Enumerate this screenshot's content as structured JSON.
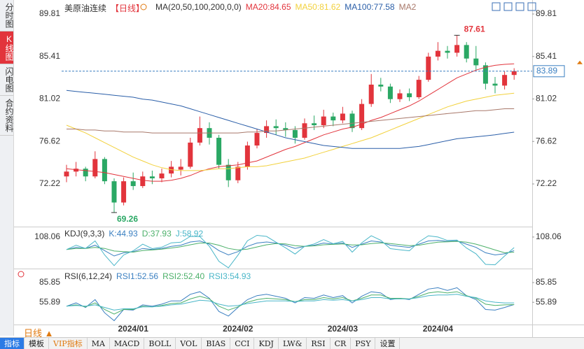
{
  "sidebar": {
    "tabs": [
      "分时图",
      "K线图",
      "闪电图",
      "合约资料"
    ]
  },
  "period_selector": "日线",
  "toolbar": {
    "items": [
      "指标",
      "模板",
      "VIP指标",
      "MA",
      "MACD",
      "BOLL",
      "VOL",
      "BIAS",
      "CCI",
      "KDJ",
      "LW&",
      "RSI",
      "CR",
      "PSY",
      "设置"
    ]
  },
  "chart_data": [
    {
      "type": "candlestick",
      "title": "美原油连续",
      "period": "【日线】",
      "indicator": "MA(20,50,100,200,0,0)",
      "categories": [
        null,
        null,
        null,
        null,
        null,
        null,
        null,
        "2024/01",
        null,
        null,
        null,
        null,
        null,
        null,
        null,
        null,
        null,
        null,
        "2024/02",
        null,
        null,
        null,
        null,
        null,
        null,
        null,
        null,
        null,
        null,
        "2024/03",
        null,
        null,
        null,
        null,
        null,
        null,
        null,
        null,
        null,
        "2024/04",
        null,
        null,
        null,
        null,
        null,
        null,
        null,
        null
      ],
      "up_color": "#e2343c",
      "down_color": "#2aa864",
      "ohlc": [
        [
          73.0,
          74.2,
          72.4,
          73.5
        ],
        [
          73.5,
          74.5,
          73.0,
          73.8
        ],
        [
          73.8,
          74.0,
          72.5,
          73.0
        ],
        [
          73.0,
          75.6,
          72.8,
          74.8
        ],
        [
          74.8,
          75.0,
          72.2,
          72.5
        ],
        [
          72.5,
          72.8,
          69.26,
          70.3
        ],
        [
          70.3,
          72.9,
          70.0,
          72.5
        ],
        [
          72.5,
          73.4,
          71.6,
          72.0
        ],
        [
          72.0,
          73.5,
          71.8,
          73.0
        ],
        [
          73.0,
          73.6,
          72.2,
          72.8
        ],
        [
          72.8,
          73.8,
          72.4,
          73.3
        ],
        [
          73.3,
          74.6,
          72.9,
          74.0
        ],
        [
          73.7,
          74.8,
          73.1,
          74.0
        ],
        [
          74.0,
          77.0,
          73.8,
          76.5
        ],
        [
          76.5,
          79.2,
          76.2,
          78.0
        ],
        [
          78.0,
          78.6,
          76.3,
          77.0
        ],
        [
          77.0,
          77.3,
          73.8,
          74.2
        ],
        [
          74.2,
          74.8,
          71.9,
          72.6
        ],
        [
          72.6,
          74.5,
          72.3,
          74.0
        ],
        [
          74.0,
          76.6,
          73.7,
          76.2
        ],
        [
          76.2,
          77.9,
          75.9,
          77.5
        ],
        [
          77.5,
          78.8,
          77.0,
          78.2
        ],
        [
          78.2,
          78.9,
          77.3,
          78.0
        ],
        [
          78.0,
          78.6,
          77.1,
          77.8
        ],
        [
          77.8,
          78.2,
          76.4,
          77.0
        ],
        [
          77.0,
          79.0,
          76.8,
          78.5
        ],
        [
          78.5,
          79.3,
          77.8,
          78.3
        ],
        [
          78.3,
          79.9,
          78.0,
          79.2
        ],
        [
          79.2,
          79.6,
          78.2,
          78.8
        ],
        [
          78.8,
          80.2,
          78.5,
          79.5
        ],
        [
          79.5,
          79.8,
          77.6,
          78.0
        ],
        [
          78.0,
          81.0,
          77.8,
          80.5
        ],
        [
          80.5,
          83.6,
          80.2,
          82.5
        ],
        [
          82.5,
          83.2,
          81.8,
          82.3
        ],
        [
          82.3,
          82.6,
          80.6,
          81.0
        ],
        [
          81.0,
          82.0,
          80.7,
          81.6
        ],
        [
          81.6,
          82.1,
          80.8,
          81.2
        ],
        [
          81.2,
          83.4,
          81.0,
          83.0
        ],
        [
          83.0,
          85.8,
          82.8,
          85.4
        ],
        [
          85.4,
          86.9,
          85.0,
          86.0
        ],
        [
          86.0,
          86.5,
          85.2,
          85.8
        ],
        [
          85.8,
          87.61,
          85.4,
          86.6
        ],
        [
          86.6,
          86.9,
          84.8,
          85.2
        ],
        [
          85.2,
          86.5,
          84.0,
          84.5
        ],
        [
          84.5,
          84.8,
          82.0,
          82.6
        ],
        [
          82.6,
          83.3,
          81.6,
          82.4
        ],
        [
          82.4,
          83.9,
          82.0,
          83.5
        ],
        [
          83.5,
          84.2,
          83.0,
          83.89
        ]
      ],
      "series": [
        {
          "name": "MA20:84.65",
          "color": "#e2343c",
          "values": [
            73.8,
            73.7,
            73.6,
            73.5,
            73.4,
            73.2,
            73.0,
            72.8,
            72.6,
            72.5,
            72.5,
            72.6,
            72.8,
            73.1,
            73.5,
            73.8,
            74.0,
            74.1,
            74.2,
            74.4,
            74.6,
            75.0,
            75.4,
            75.8,
            76.1,
            76.5,
            76.9,
            77.3,
            77.6,
            77.9,
            78.1,
            78.4,
            78.8,
            79.1,
            79.5,
            79.9,
            80.3,
            80.8,
            81.4,
            82.0,
            82.6,
            83.2,
            83.6,
            84.0,
            84.3,
            84.5,
            84.6,
            84.65
          ]
        },
        {
          "name": "MA50:81.62",
          "color": "#f2d13c",
          "values": [
            78.3,
            77.9,
            77.5,
            77.0,
            76.5,
            76.0,
            75.5,
            75.0,
            74.6,
            74.2,
            73.9,
            73.7,
            73.6,
            73.6,
            73.6,
            73.7,
            73.8,
            73.8,
            73.9,
            74.0,
            74.0,
            74.1,
            74.3,
            74.5,
            74.7,
            74.9,
            75.2,
            75.5,
            75.8,
            76.1,
            76.4,
            76.7,
            77.0,
            77.4,
            77.8,
            78.2,
            78.6,
            79.0,
            79.4,
            79.8,
            80.2,
            80.5,
            80.8,
            81.0,
            81.2,
            81.4,
            81.5,
            81.62
          ]
        },
        {
          "name": "MA100:77.58",
          "color": "#2a5ea8",
          "values": [
            81.9,
            81.8,
            81.7,
            81.6,
            81.5,
            81.4,
            81.3,
            81.2,
            81.0,
            80.9,
            80.7,
            80.5,
            80.3,
            80.0,
            79.7,
            79.4,
            79.1,
            78.8,
            78.5,
            78.2,
            77.9,
            77.6,
            77.3,
            77.0,
            76.8,
            76.6,
            76.4,
            76.2,
            76.1,
            76.0,
            75.9,
            75.9,
            75.9,
            75.9,
            75.9,
            75.9,
            76.0,
            76.1,
            76.3,
            76.5,
            76.7,
            76.9,
            77.0,
            77.1,
            77.2,
            77.3,
            77.45,
            77.58
          ]
        },
        {
          "name": "MA2",
          "color": "#a8786a",
          "values": [
            77.9,
            77.9,
            77.8,
            77.8,
            77.7,
            77.7,
            77.6,
            77.6,
            77.6,
            77.5,
            77.5,
            77.5,
            77.5,
            77.5,
            77.5,
            77.5,
            77.5,
            77.5,
            77.5,
            77.6,
            77.6,
            77.7,
            77.7,
            77.8,
            77.9,
            78.0,
            78.1,
            78.2,
            78.3,
            78.4,
            78.5,
            78.6,
            78.7,
            78.8,
            78.9,
            79.0,
            79.1,
            79.2,
            79.3,
            79.4,
            79.5,
            79.6,
            79.7,
            79.8,
            79.8,
            79.9,
            80.0,
            80.0
          ]
        }
      ],
      "ylim": [
        67.95,
        90.68
      ],
      "yticks": [
        72.22,
        76.62,
        81.02,
        85.41,
        89.81
      ]
    },
    {
      "type": "line",
      "title": "KDJ(9,3,3)",
      "series": [
        {
          "name": "K:44.93",
          "color": "#3a7fc1",
          "values": [
            50,
            60,
            55,
            70,
            45,
            20,
            35,
            40,
            55,
            50,
            55,
            65,
            70,
            85,
            90,
            75,
            45,
            25,
            40,
            65,
            80,
            85,
            80,
            70,
            55,
            65,
            70,
            80,
            75,
            80,
            60,
            75,
            90,
            85,
            70,
            65,
            60,
            75,
            90,
            92,
            88,
            90,
            75,
            60,
            35,
            25,
            30,
            44.93
          ]
        },
        {
          "name": "D:37.93",
          "color": "#4cb06a",
          "values": [
            50,
            55,
            55,
            60,
            55,
            43,
            40,
            38,
            45,
            48,
            52,
            57,
            63,
            72,
            80,
            80,
            70,
            55,
            48,
            52,
            62,
            72,
            78,
            76,
            68,
            65,
            67,
            72,
            74,
            76,
            71,
            72,
            78,
            81,
            78,
            73,
            68,
            70,
            78,
            84,
            86,
            88,
            84,
            75,
            62,
            48,
            35,
            37.93
          ]
        },
        {
          "name": "J:58.92",
          "color": "#49b6c8",
          "values": [
            50,
            70,
            55,
            90,
            25,
            -25,
            25,
            44,
            75,
            54,
            61,
            81,
            84,
            111,
            110,
            65,
            -5,
            -35,
            24,
            91,
            116,
            111,
            84,
            58,
            29,
            65,
            76,
            96,
            77,
            88,
            38,
            81,
            114,
            93,
            54,
            49,
            44,
            85,
            114,
            108,
            92,
            94,
            57,
            30,
            -19,
            -21,
            20,
            58.92
          ]
        }
      ],
      "ylim": [
        -45,
        150
      ],
      "yticks": [
        108.06
      ]
    },
    {
      "type": "line",
      "title": "RSI(6,12,24)",
      "series": [
        {
          "name": "RSI1:52.56",
          "color": "#3a7fc1",
          "values": [
            50,
            55,
            48,
            60,
            40,
            28,
            45,
            44,
            52,
            50,
            53,
            58,
            58,
            68,
            72,
            62,
            42,
            35,
            48,
            60,
            66,
            68,
            65,
            62,
            55,
            63,
            62,
            67,
            63,
            66,
            55,
            65,
            72,
            70,
            60,
            62,
            60,
            68,
            76,
            78,
            74,
            78,
            66,
            60,
            45,
            44,
            48,
            52.56
          ]
        },
        {
          "name": "RSI2:52.40",
          "color": "#4cb06a",
          "values": [
            50,
            52,
            49,
            55,
            45,
            38,
            45,
            45,
            50,
            49,
            51,
            54,
            55,
            61,
            65,
            61,
            50,
            44,
            49,
            56,
            60,
            62,
            61,
            60,
            57,
            60,
            60,
            63,
            61,
            63,
            58,
            62,
            67,
            67,
            62,
            62,
            61,
            65,
            70,
            72,
            70,
            72,
            66,
            62,
            53,
            51,
            52,
            52.4
          ]
        },
        {
          "name": "RSI3:54.93",
          "color": "#49b6c8",
          "values": [
            50,
            51,
            50,
            52,
            48,
            44,
            46,
            46,
            49,
            49,
            50,
            52,
            53,
            56,
            59,
            58,
            53,
            50,
            51,
            54,
            56,
            58,
            58,
            58,
            57,
            58,
            58,
            60,
            59,
            60,
            58,
            60,
            63,
            63,
            61,
            61,
            61,
            63,
            66,
            67,
            67,
            68,
            65,
            63,
            58,
            56,
            55,
            54.93
          ]
        }
      ],
      "ylim": [
        20,
        105
      ],
      "yticks": [
        85.85,
        55.89
      ]
    }
  ]
}
